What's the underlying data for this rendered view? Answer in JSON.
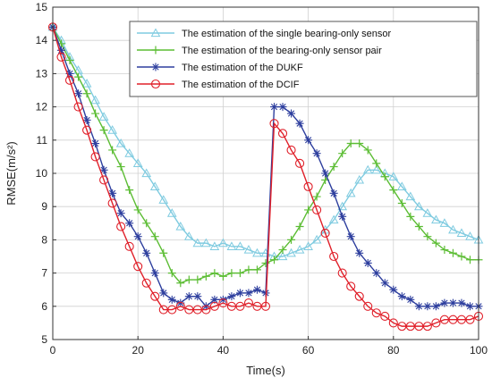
{
  "chart_data": {
    "type": "line",
    "xlabel": "Time(s)",
    "ylabel": "RMSE(m/s²)",
    "xlim": [
      0,
      100
    ],
    "ylim": [
      5,
      15
    ],
    "x_ticks": [
      "0",
      "20",
      "40",
      "60",
      "80",
      "100"
    ],
    "y_ticks": [
      "5",
      "6",
      "7",
      "8",
      "9",
      "10",
      "11",
      "12",
      "13",
      "14",
      "15"
    ],
    "grid": true,
    "legend_position": "top-right",
    "series": [
      {
        "name": "The estimation of the single bearing-only sensor",
        "color": "#7fcbe0",
        "marker": "triangle",
        "x": [
          0,
          2,
          4,
          6,
          8,
          10,
          12,
          14,
          16,
          18,
          20,
          22,
          24,
          26,
          28,
          30,
          32,
          34,
          36,
          38,
          40,
          42,
          44,
          46,
          48,
          50,
          52,
          54,
          56,
          58,
          60,
          62,
          64,
          66,
          68,
          70,
          72,
          74,
          76,
          78,
          80,
          82,
          84,
          86,
          88,
          90,
          92,
          94,
          96,
          98,
          100
        ],
        "y": [
          14.4,
          14.0,
          13.5,
          13.1,
          12.7,
          12.2,
          11.7,
          11.3,
          10.9,
          10.6,
          10.3,
          10.0,
          9.6,
          9.2,
          8.8,
          8.4,
          8.1,
          7.9,
          7.9,
          7.8,
          7.9,
          7.8,
          7.8,
          7.7,
          7.6,
          7.6,
          7.5,
          7.5,
          7.6,
          7.7,
          7.8,
          8.0,
          8.3,
          8.6,
          9.0,
          9.4,
          9.8,
          10.1,
          10.1,
          10.0,
          9.9,
          9.6,
          9.3,
          9.0,
          8.8,
          8.6,
          8.5,
          8.3,
          8.2,
          8.1,
          8.0
        ]
      },
      {
        "name": "The estimation of the bearing-only sensor pair",
        "color": "#5cbd34",
        "marker": "plus",
        "x": [
          0,
          2,
          4,
          6,
          8,
          10,
          12,
          14,
          16,
          18,
          20,
          22,
          24,
          26,
          28,
          30,
          32,
          34,
          36,
          38,
          40,
          42,
          44,
          46,
          48,
          50,
          52,
          54,
          56,
          58,
          60,
          62,
          64,
          66,
          68,
          70,
          72,
          74,
          76,
          78,
          80,
          82,
          84,
          86,
          88,
          90,
          92,
          94,
          96,
          98,
          100
        ],
        "y": [
          14.4,
          13.9,
          13.4,
          12.9,
          12.4,
          11.8,
          11.3,
          10.7,
          10.2,
          9.5,
          8.9,
          8.5,
          8.1,
          7.6,
          7.0,
          6.7,
          6.8,
          6.8,
          6.9,
          7.0,
          6.9,
          7.0,
          7.0,
          7.1,
          7.1,
          7.3,
          7.4,
          7.7,
          8.0,
          8.4,
          8.9,
          9.3,
          9.8,
          10.2,
          10.6,
          10.9,
          10.9,
          10.7,
          10.3,
          9.9,
          9.5,
          9.1,
          8.7,
          8.4,
          8.1,
          7.9,
          7.7,
          7.6,
          7.5,
          7.4,
          7.4
        ]
      },
      {
        "name": "The estimation of the DUKF",
        "color": "#2e3f9e",
        "marker": "star",
        "x": [
          0,
          2,
          4,
          6,
          8,
          10,
          12,
          14,
          16,
          18,
          20,
          22,
          24,
          26,
          28,
          30,
          32,
          34,
          36,
          38,
          40,
          42,
          44,
          46,
          48,
          50,
          52,
          54,
          56,
          58,
          60,
          62,
          64,
          66,
          68,
          70,
          72,
          74,
          76,
          78,
          80,
          82,
          84,
          86,
          88,
          90,
          92,
          94,
          96,
          98,
          100
        ],
        "y": [
          14.4,
          13.7,
          13.0,
          12.4,
          11.6,
          10.9,
          10.1,
          9.4,
          8.8,
          8.5,
          8.1,
          7.6,
          7.0,
          6.4,
          6.2,
          6.1,
          6.3,
          6.3,
          6.0,
          6.2,
          6.2,
          6.3,
          6.4,
          6.4,
          6.5,
          6.4,
          12.0,
          12.0,
          11.8,
          11.5,
          11.0,
          10.6,
          10.0,
          9.4,
          8.7,
          8.1,
          7.6,
          7.3,
          7.0,
          6.7,
          6.5,
          6.3,
          6.2,
          6.0,
          6.0,
          6.0,
          6.1,
          6.1,
          6.1,
          6.0,
          6.0
        ]
      },
      {
        "name": "The estimation of the DCIF",
        "color": "#e0202a",
        "marker": "circle",
        "x": [
          0,
          2,
          4,
          6,
          8,
          10,
          12,
          14,
          16,
          18,
          20,
          22,
          24,
          26,
          28,
          30,
          32,
          34,
          36,
          38,
          40,
          42,
          44,
          46,
          48,
          50,
          52,
          54,
          56,
          58,
          60,
          62,
          64,
          66,
          68,
          70,
          72,
          74,
          76,
          78,
          80,
          82,
          84,
          86,
          88,
          90,
          92,
          94,
          96,
          98,
          100
        ],
        "y": [
          14.4,
          13.5,
          12.8,
          12.0,
          11.3,
          10.5,
          9.8,
          9.1,
          8.4,
          7.8,
          7.2,
          6.7,
          6.3,
          5.9,
          5.9,
          6.0,
          5.9,
          5.9,
          5.9,
          6.0,
          6.1,
          6.0,
          6.0,
          6.1,
          6.0,
          6.0,
          11.5,
          11.2,
          10.7,
          10.3,
          9.6,
          8.9,
          8.2,
          7.5,
          7.0,
          6.6,
          6.3,
          6.0,
          5.8,
          5.7,
          5.5,
          5.4,
          5.4,
          5.4,
          5.4,
          5.5,
          5.6,
          5.6,
          5.6,
          5.6,
          5.7
        ]
      }
    ]
  }
}
